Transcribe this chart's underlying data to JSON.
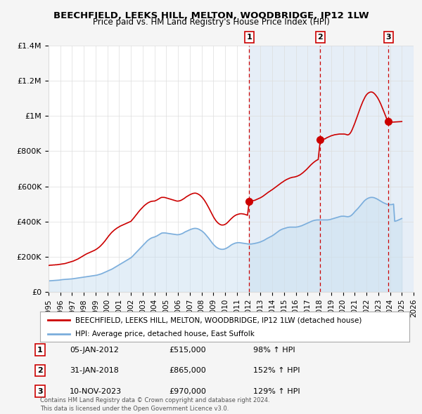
{
  "title": "BEECHFIELD, LEEKS HILL, MELTON, WOODBRIDGE, IP12 1LW",
  "subtitle": "Price paid vs. HM Land Registry's House Price Index (HPI)",
  "legend_line1": "BEECHFIELD, LEEKS HILL, MELTON, WOODBRIDGE, IP12 1LW (detached house)",
  "legend_line2": "HPI: Average price, detached house, East Suffolk",
  "transactions": [
    {
      "num": 1,
      "date": "05-JAN-2012",
      "price": "£515,000",
      "hpi": "98% ↑ HPI",
      "x": 2012.04
    },
    {
      "num": 2,
      "date": "31-JAN-2018",
      "price": "£865,000",
      "hpi": "152% ↑ HPI",
      "x": 2018.08
    },
    {
      "num": 3,
      "date": "10-NOV-2023",
      "price": "£970,000",
      "hpi": "129% ↑ HPI",
      "x": 2023.86
    }
  ],
  "transaction_values": [
    515000,
    865000,
    970000
  ],
  "vline_x": [
    2012.04,
    2018.08,
    2023.86
  ],
  "footer": "Contains HM Land Registry data © Crown copyright and database right 2024.\nThis data is licensed under the Open Government Licence v3.0.",
  "ylim": [
    0,
    1400000
  ],
  "xlim": [
    1995.0,
    2026.0
  ],
  "yticks": [
    0,
    200000,
    400000,
    600000,
    800000,
    1000000,
    1200000,
    1400000
  ],
  "ytick_labels": [
    "£0",
    "£200K",
    "£400K",
    "£600K",
    "£800K",
    "£1M",
    "£1.2M",
    "£1.4M"
  ],
  "background_color": "#f5f5f5",
  "plot_bg_color": "#ffffff",
  "red_line_color": "#cc0000",
  "blue_line_color": "#7aaddc",
  "blue_fill_color": "#c8dff0",
  "vline_color": "#cc0000",
  "grid_color": "#dddddd",
  "shaded_region_color": "#dce8f5",
  "hpi_data_x": [
    1995.0,
    1995.1,
    1995.2,
    1995.3,
    1995.4,
    1995.5,
    1995.6,
    1995.7,
    1995.8,
    1995.9,
    1996.0,
    1996.1,
    1996.2,
    1996.3,
    1996.4,
    1996.5,
    1996.6,
    1996.7,
    1996.8,
    1996.9,
    1997.0,
    1997.1,
    1997.2,
    1997.3,
    1997.4,
    1997.5,
    1997.6,
    1997.7,
    1997.8,
    1997.9,
    1998.0,
    1998.1,
    1998.2,
    1998.3,
    1998.4,
    1998.5,
    1998.6,
    1998.7,
    1998.8,
    1998.9,
    1999.0,
    1999.1,
    1999.2,
    1999.3,
    1999.4,
    1999.5,
    1999.6,
    1999.7,
    1999.8,
    1999.9,
    2000.0,
    2000.1,
    2000.2,
    2000.3,
    2000.4,
    2000.5,
    2000.6,
    2000.7,
    2000.8,
    2000.9,
    2001.0,
    2001.1,
    2001.2,
    2001.3,
    2001.4,
    2001.5,
    2001.6,
    2001.7,
    2001.8,
    2001.9,
    2002.0,
    2002.1,
    2002.2,
    2002.3,
    2002.4,
    2002.5,
    2002.6,
    2002.7,
    2002.8,
    2002.9,
    2003.0,
    2003.1,
    2003.2,
    2003.3,
    2003.4,
    2003.5,
    2003.6,
    2003.7,
    2003.8,
    2003.9,
    2004.0,
    2004.1,
    2004.2,
    2004.3,
    2004.4,
    2004.5,
    2004.6,
    2004.7,
    2004.8,
    2004.9,
    2005.0,
    2005.1,
    2005.2,
    2005.3,
    2005.4,
    2005.5,
    2005.6,
    2005.7,
    2005.8,
    2005.9,
    2006.0,
    2006.1,
    2006.2,
    2006.3,
    2006.4,
    2006.5,
    2006.6,
    2006.7,
    2006.8,
    2006.9,
    2007.0,
    2007.1,
    2007.2,
    2007.3,
    2007.4,
    2007.5,
    2007.6,
    2007.7,
    2007.8,
    2007.9,
    2008.0,
    2008.1,
    2008.2,
    2008.3,
    2008.4,
    2008.5,
    2008.6,
    2008.7,
    2008.8,
    2008.9,
    2009.0,
    2009.1,
    2009.2,
    2009.3,
    2009.4,
    2009.5,
    2009.6,
    2009.7,
    2009.8,
    2009.9,
    2010.0,
    2010.1,
    2010.2,
    2010.3,
    2010.4,
    2010.5,
    2010.6,
    2010.7,
    2010.8,
    2010.9,
    2011.0,
    2011.1,
    2011.2,
    2011.3,
    2011.4,
    2011.5,
    2011.6,
    2011.7,
    2011.8,
    2011.9,
    2012.0,
    2012.1,
    2012.2,
    2012.3,
    2012.4,
    2012.5,
    2012.6,
    2012.7,
    2012.8,
    2012.9,
    2013.0,
    2013.1,
    2013.2,
    2013.3,
    2013.4,
    2013.5,
    2013.6,
    2013.7,
    2013.8,
    2013.9,
    2014.0,
    2014.1,
    2014.2,
    2014.3,
    2014.4,
    2014.5,
    2014.6,
    2014.7,
    2014.8,
    2014.9,
    2015.0,
    2015.1,
    2015.2,
    2015.3,
    2015.4,
    2015.5,
    2015.6,
    2015.7,
    2015.8,
    2015.9,
    2016.0,
    2016.1,
    2016.2,
    2016.3,
    2016.4,
    2016.5,
    2016.6,
    2016.7,
    2016.8,
    2016.9,
    2017.0,
    2017.1,
    2017.2,
    2017.3,
    2017.4,
    2017.5,
    2017.6,
    2017.7,
    2017.8,
    2017.9,
    2018.0,
    2018.1,
    2018.2,
    2018.3,
    2018.4,
    2018.5,
    2018.6,
    2018.7,
    2018.8,
    2018.9,
    2019.0,
    2019.1,
    2019.2,
    2019.3,
    2019.4,
    2019.5,
    2019.6,
    2019.7,
    2019.8,
    2019.9,
    2020.0,
    2020.1,
    2020.2,
    2020.3,
    2020.4,
    2020.5,
    2020.6,
    2020.7,
    2020.8,
    2020.9,
    2021.0,
    2021.1,
    2021.2,
    2021.3,
    2021.4,
    2021.5,
    2021.6,
    2021.7,
    2021.8,
    2021.9,
    2022.0,
    2022.1,
    2022.2,
    2022.3,
    2022.4,
    2022.5,
    2022.6,
    2022.7,
    2022.8,
    2022.9,
    2023.0,
    2023.1,
    2023.2,
    2023.3,
    2023.4,
    2023.5,
    2023.6,
    2023.7,
    2023.8,
    2023.9,
    2024.0,
    2024.1,
    2024.2,
    2024.3,
    2024.4,
    2024.5,
    2024.6,
    2024.7,
    2024.8,
    2024.9,
    2025.0
  ],
  "hpi_data_y": [
    62000,
    63000,
    63500,
    64000,
    64500,
    65000,
    65500,
    66000,
    66500,
    67000,
    68000,
    69000,
    70000,
    70500,
    71000,
    71500,
    72000,
    72500,
    73000,
    73500,
    74000,
    75000,
    76000,
    77000,
    78000,
    79000,
    80000,
    81000,
    82000,
    83000,
    84000,
    85000,
    86000,
    87000,
    88000,
    89000,
    90000,
    91000,
    92000,
    93000,
    94000,
    95000,
    97000,
    99000,
    101000,
    103000,
    106000,
    109000,
    112000,
    115000,
    118000,
    121000,
    124000,
    127000,
    130000,
    134000,
    138000,
    142000,
    146000,
    150000,
    154000,
    158000,
    162000,
    166000,
    170000,
    174000,
    178000,
    182000,
    186000,
    190000,
    194000,
    200000,
    207000,
    214000,
    221000,
    228000,
    235000,
    242000,
    249000,
    256000,
    263000,
    270000,
    277000,
    284000,
    291000,
    296000,
    301000,
    305000,
    308000,
    310000,
    312000,
    315000,
    318000,
    322000,
    326000,
    330000,
    334000,
    335000,
    335000,
    335000,
    334000,
    333000,
    332000,
    331000,
    330000,
    329000,
    328000,
    327000,
    326000,
    325000,
    325000,
    326000,
    328000,
    330000,
    333000,
    337000,
    341000,
    344000,
    347000,
    350000,
    353000,
    356000,
    358000,
    360000,
    361000,
    361000,
    360000,
    358000,
    355000,
    351000,
    347000,
    342000,
    336000,
    329000,
    321000,
    313000,
    305000,
    296000,
    287000,
    278000,
    270000,
    263000,
    257000,
    252000,
    248000,
    245000,
    243000,
    242000,
    242000,
    243000,
    245000,
    248000,
    252000,
    256000,
    261000,
    266000,
    270000,
    273000,
    276000,
    278000,
    279000,
    280000,
    280000,
    279000,
    278000,
    277000,
    276000,
    275000,
    274000,
    273000,
    272000,
    272000,
    272000,
    273000,
    274000,
    275000,
    277000,
    278000,
    280000,
    282000,
    284000,
    287000,
    290000,
    293000,
    297000,
    301000,
    305000,
    308000,
    312000,
    315000,
    319000,
    323000,
    328000,
    333000,
    338000,
    343000,
    348000,
    352000,
    355000,
    358000,
    360000,
    362000,
    364000,
    366000,
    367000,
    368000,
    368000,
    368000,
    368000,
    368000,
    368000,
    369000,
    370000,
    372000,
    374000,
    376000,
    379000,
    382000,
    385000,
    388000,
    391000,
    394000,
    397000,
    400000,
    403000,
    405000,
    407000,
    408000,
    409000,
    409000,
    409000,
    409000,
    409000,
    409000,
    409000,
    409000,
    409000,
    409000,
    410000,
    411000,
    413000,
    415000,
    417000,
    419000,
    421000,
    423000,
    425000,
    427000,
    429000,
    430000,
    430000,
    430000,
    429000,
    428000,
    427000,
    428000,
    430000,
    434000,
    440000,
    447000,
    455000,
    462000,
    469000,
    476000,
    484000,
    492000,
    500000,
    508000,
    516000,
    522000,
    527000,
    531000,
    534000,
    536000,
    537000,
    537000,
    536000,
    534000,
    531000,
    528000,
    524000,
    520000,
    516000,
    512000,
    508000,
    505000,
    502000,
    499000,
    497000,
    496000,
    496000,
    496000,
    497000,
    499000,
    401000,
    403000,
    405000,
    408000,
    411000,
    414000,
    417000
  ],
  "price_data_x": [
    1995.0,
    1995.1,
    1995.2,
    1995.3,
    1995.4,
    1995.5,
    1995.6,
    1995.7,
    1995.8,
    1995.9,
    1996.0,
    1996.1,
    1996.2,
    1996.3,
    1996.4,
    1996.5,
    1996.6,
    1996.7,
    1996.8,
    1996.9,
    1997.0,
    1997.1,
    1997.2,
    1997.3,
    1997.4,
    1997.5,
    1997.6,
    1997.7,
    1997.8,
    1997.9,
    1998.0,
    1998.1,
    1998.2,
    1998.3,
    1998.4,
    1998.5,
    1998.6,
    1998.7,
    1998.8,
    1998.9,
    1999.0,
    1999.1,
    1999.2,
    1999.3,
    1999.4,
    1999.5,
    1999.6,
    1999.7,
    1999.8,
    1999.9,
    2000.0,
    2000.1,
    2000.2,
    2000.3,
    2000.4,
    2000.5,
    2000.6,
    2000.7,
    2000.8,
    2000.9,
    2001.0,
    2001.1,
    2001.2,
    2001.3,
    2001.4,
    2001.5,
    2001.6,
    2001.7,
    2001.8,
    2001.9,
    2002.0,
    2002.1,
    2002.2,
    2002.3,
    2002.4,
    2002.5,
    2002.6,
    2002.7,
    2002.8,
    2002.9,
    2003.0,
    2003.1,
    2003.2,
    2003.3,
    2003.4,
    2003.5,
    2003.6,
    2003.7,
    2003.8,
    2003.9,
    2004.0,
    2004.1,
    2004.2,
    2004.3,
    2004.4,
    2004.5,
    2004.6,
    2004.7,
    2004.8,
    2004.9,
    2005.0,
    2005.1,
    2005.2,
    2005.3,
    2005.4,
    2005.5,
    2005.6,
    2005.7,
    2005.8,
    2005.9,
    2006.0,
    2006.1,
    2006.2,
    2006.3,
    2006.4,
    2006.5,
    2006.6,
    2006.7,
    2006.8,
    2006.9,
    2007.0,
    2007.1,
    2007.2,
    2007.3,
    2007.4,
    2007.5,
    2007.6,
    2007.7,
    2007.8,
    2007.9,
    2008.0,
    2008.1,
    2008.2,
    2008.3,
    2008.4,
    2008.5,
    2008.6,
    2008.7,
    2008.8,
    2008.9,
    2009.0,
    2009.1,
    2009.2,
    2009.3,
    2009.4,
    2009.5,
    2009.6,
    2009.7,
    2009.8,
    2009.9,
    2010.0,
    2010.1,
    2010.2,
    2010.3,
    2010.4,
    2010.5,
    2010.6,
    2010.7,
    2010.8,
    2010.9,
    2011.0,
    2011.1,
    2011.2,
    2011.3,
    2011.4,
    2011.5,
    2011.6,
    2011.7,
    2011.8,
    2011.9,
    2012.04,
    2012.5,
    2012.6,
    2012.7,
    2012.8,
    2012.9,
    2013.0,
    2013.1,
    2013.2,
    2013.3,
    2013.4,
    2013.5,
    2013.6,
    2013.7,
    2013.8,
    2013.9,
    2014.0,
    2014.1,
    2014.2,
    2014.3,
    2014.4,
    2014.5,
    2014.6,
    2014.7,
    2014.8,
    2014.9,
    2015.0,
    2015.1,
    2015.2,
    2015.3,
    2015.4,
    2015.5,
    2015.6,
    2015.7,
    2015.8,
    2015.9,
    2016.0,
    2016.1,
    2016.2,
    2016.3,
    2016.4,
    2016.5,
    2016.6,
    2016.7,
    2016.8,
    2016.9,
    2017.0,
    2017.1,
    2017.2,
    2017.3,
    2017.4,
    2017.5,
    2017.6,
    2017.7,
    2017.8,
    2017.9,
    2018.08,
    2018.5,
    2018.6,
    2018.7,
    2018.8,
    2018.9,
    2019.0,
    2019.1,
    2019.2,
    2019.3,
    2019.4,
    2019.5,
    2019.6,
    2019.7,
    2019.8,
    2019.9,
    2020.0,
    2020.1,
    2020.2,
    2020.3,
    2020.4,
    2020.5,
    2020.6,
    2020.7,
    2020.8,
    2020.9,
    2021.0,
    2021.1,
    2021.2,
    2021.3,
    2021.4,
    2021.5,
    2021.6,
    2021.7,
    2021.8,
    2021.9,
    2022.0,
    2022.1,
    2022.2,
    2022.3,
    2022.4,
    2022.5,
    2022.6,
    2022.7,
    2022.8,
    2022.9,
    2023.0,
    2023.1,
    2023.2,
    2023.3,
    2023.4,
    2023.5,
    2023.6,
    2023.7,
    2023.8,
    2023.86,
    2024.0,
    2024.1,
    2024.2,
    2024.3,
    2024.5,
    2025.0
  ],
  "price_data_y": [
    150000,
    151000,
    152000,
    152000,
    153000,
    153000,
    154000,
    154000,
    155000,
    156000,
    157000,
    158000,
    159000,
    160000,
    161000,
    163000,
    165000,
    167000,
    169000,
    171000,
    173000,
    175000,
    178000,
    181000,
    184000,
    187000,
    191000,
    195000,
    199000,
    203000,
    207000,
    211000,
    215000,
    218000,
    221000,
    224000,
    227000,
    230000,
    233000,
    236000,
    240000,
    244000,
    249000,
    254000,
    260000,
    267000,
    274000,
    282000,
    290000,
    299000,
    308000,
    317000,
    325000,
    333000,
    340000,
    346000,
    352000,
    357000,
    362000,
    366000,
    370000,
    374000,
    377000,
    380000,
    383000,
    386000,
    389000,
    392000,
    395000,
    398000,
    401000,
    409000,
    417000,
    425000,
    434000,
    442000,
    451000,
    459000,
    467000,
    474000,
    481000,
    488000,
    494000,
    499000,
    504000,
    508000,
    511000,
    514000,
    515000,
    516000,
    516000,
    519000,
    522000,
    526000,
    530000,
    534000,
    537000,
    537000,
    537000,
    536000,
    534000,
    532000,
    530000,
    528000,
    526000,
    524000,
    522000,
    520000,
    518000,
    516000,
    516000,
    517000,
    519000,
    522000,
    526000,
    530000,
    535000,
    540000,
    544000,
    548000,
    552000,
    555000,
    558000,
    560000,
    561000,
    561000,
    559000,
    556000,
    552000,
    547000,
    540000,
    533000,
    524000,
    514000,
    503000,
    491000,
    479000,
    466000,
    453000,
    440000,
    427000,
    416000,
    406000,
    398000,
    391000,
    386000,
    382000,
    380000,
    380000,
    381000,
    384000,
    388000,
    394000,
    401000,
    408000,
    415000,
    421000,
    427000,
    432000,
    436000,
    439000,
    441000,
    443000,
    444000,
    444000,
    443000,
    442000,
    440000,
    438000,
    435000,
    515000,
    520000,
    523000,
    526000,
    529000,
    532000,
    535000,
    539000,
    543000,
    548000,
    553000,
    558000,
    563000,
    568000,
    572000,
    577000,
    581000,
    586000,
    591000,
    596000,
    601000,
    606000,
    611000,
    616000,
    621000,
    625000,
    630000,
    634000,
    638000,
    641000,
    644000,
    647000,
    649000,
    651000,
    652000,
    653000,
    655000,
    657000,
    660000,
    663000,
    667000,
    672000,
    677000,
    683000,
    689000,
    695000,
    702000,
    709000,
    716000,
    723000,
    729000,
    735000,
    740000,
    745000,
    749000,
    752000,
    865000,
    870000,
    875000,
    878000,
    881000,
    884000,
    887000,
    889000,
    891000,
    893000,
    894000,
    895000,
    896000,
    897000,
    897000,
    897000,
    897000,
    897000,
    896000,
    894000,
    892000,
    894000,
    900000,
    910000,
    924000,
    940000,
    957000,
    975000,
    994000,
    1013000,
    1032000,
    1050000,
    1067000,
    1083000,
    1097000,
    1110000,
    1120000,
    1127000,
    1132000,
    1135000,
    1136000,
    1135000,
    1131000,
    1125000,
    1117000,
    1108000,
    1097000,
    1084000,
    1070000,
    1054000,
    1038000,
    1021000,
    1004000,
    987000,
    972000,
    970000,
    968000,
    966000,
    965000,
    965000,
    966000,
    968000
  ],
  "xticks": [
    1995,
    1996,
    1997,
    1998,
    1999,
    2000,
    2001,
    2002,
    2003,
    2004,
    2005,
    2006,
    2007,
    2008,
    2009,
    2010,
    2011,
    2012,
    2013,
    2014,
    2015,
    2016,
    2017,
    2018,
    2019,
    2020,
    2021,
    2022,
    2023,
    2024,
    2025,
    2026
  ],
  "xtick_labels": [
    "1995",
    "1996",
    "1997",
    "1998",
    "1999",
    "2000",
    "2001",
    "2002",
    "2003",
    "2004",
    "2005",
    "2006",
    "2007",
    "2008",
    "2009",
    "2010",
    "2011",
    "2012",
    "2013",
    "2014",
    "2015",
    "2016",
    "2017",
    "2018",
    "2019",
    "2020",
    "2021",
    "2022",
    "2023",
    "2024",
    "2025",
    "2026"
  ]
}
